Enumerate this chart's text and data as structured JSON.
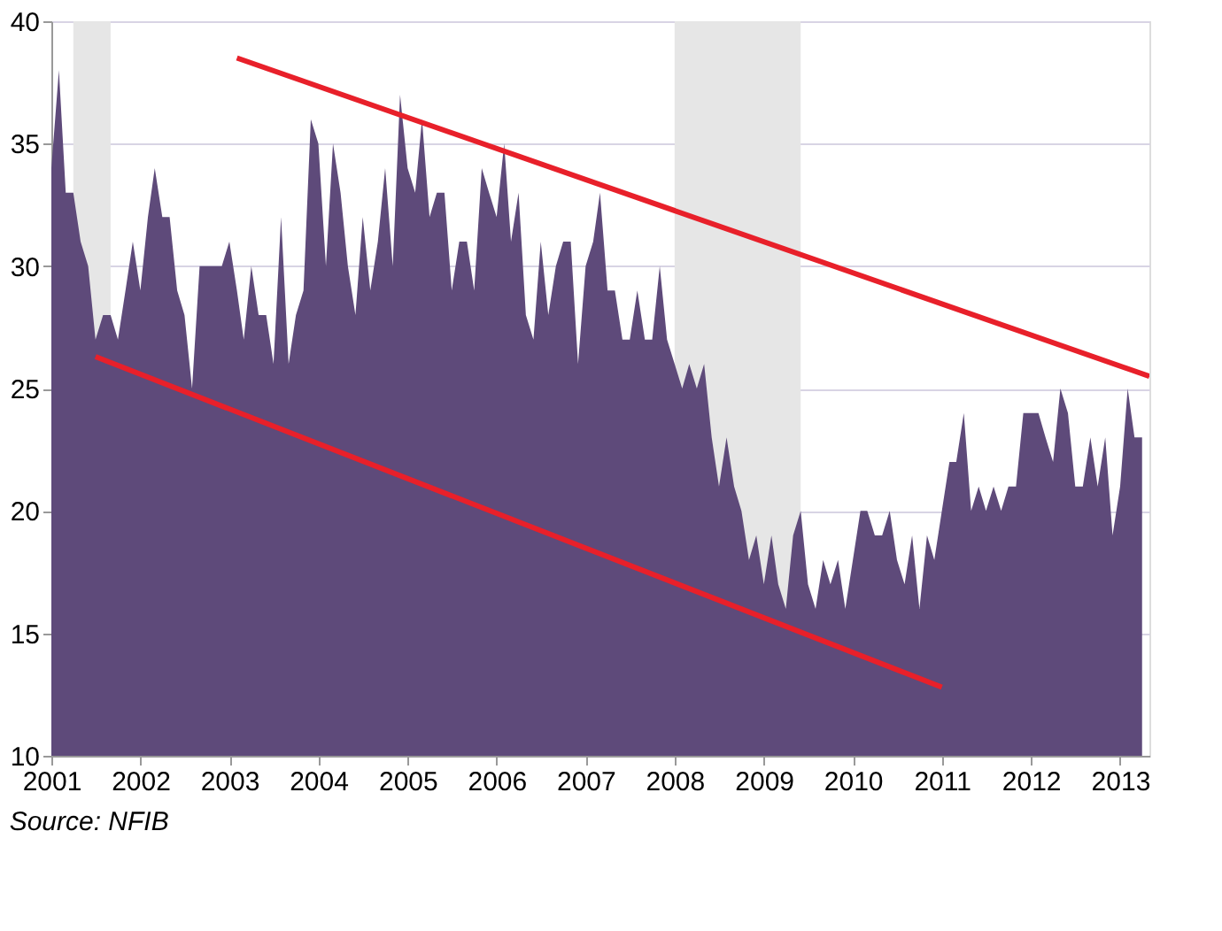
{
  "chart_data": {
    "type": "area",
    "annotations": [
      "Source: NFIB"
    ],
    "xlim": [
      "2001-01",
      "2013-05"
    ],
    "xticks": [
      "2001",
      "2002",
      "2003",
      "2004",
      "2005",
      "2006",
      "2007",
      "2008",
      "2009",
      "2010",
      "2011",
      "2012",
      "2013"
    ],
    "ylim": [
      10,
      40
    ],
    "yticks": [
      10,
      15,
      20,
      25,
      30,
      35,
      40
    ],
    "grid": "y",
    "x": [
      "2001-01",
      "2001-02",
      "2001-03",
      "2001-04",
      "2001-05",
      "2001-06",
      "2001-07",
      "2001-08",
      "2001-09",
      "2001-10",
      "2001-11",
      "2001-12",
      "2002-01",
      "2002-02",
      "2002-03",
      "2002-04",
      "2002-05",
      "2002-06",
      "2002-07",
      "2002-08",
      "2002-09",
      "2002-10",
      "2002-11",
      "2002-12",
      "2003-01",
      "2003-02",
      "2003-03",
      "2003-04",
      "2003-05",
      "2003-06",
      "2003-07",
      "2003-08",
      "2003-09",
      "2003-10",
      "2003-11",
      "2003-12",
      "2004-01",
      "2004-02",
      "2004-03",
      "2004-04",
      "2004-05",
      "2004-06",
      "2004-07",
      "2004-08",
      "2004-09",
      "2004-10",
      "2004-11",
      "2004-12",
      "2005-01",
      "2005-02",
      "2005-03",
      "2005-04",
      "2005-05",
      "2005-06",
      "2005-07",
      "2005-08",
      "2005-09",
      "2005-10",
      "2005-11",
      "2005-12",
      "2006-01",
      "2006-02",
      "2006-03",
      "2006-04",
      "2006-05",
      "2006-06",
      "2006-07",
      "2006-08",
      "2006-09",
      "2006-10",
      "2006-11",
      "2006-12",
      "2007-01",
      "2007-02",
      "2007-03",
      "2007-04",
      "2007-05",
      "2007-06",
      "2007-07",
      "2007-08",
      "2007-09",
      "2007-10",
      "2007-11",
      "2007-12",
      "2008-01",
      "2008-02",
      "2008-03",
      "2008-04",
      "2008-05",
      "2008-06",
      "2008-07",
      "2008-08",
      "2008-09",
      "2008-10",
      "2008-11",
      "2008-12",
      "2009-01",
      "2009-02",
      "2009-03",
      "2009-04",
      "2009-05",
      "2009-06",
      "2009-07",
      "2009-08",
      "2009-09",
      "2009-10",
      "2009-11",
      "2009-12",
      "2010-01",
      "2010-02",
      "2010-03",
      "2010-04",
      "2010-05",
      "2010-06",
      "2010-07",
      "2010-08",
      "2010-09",
      "2010-10",
      "2010-11",
      "2010-12",
      "2011-01",
      "2011-02",
      "2011-03",
      "2011-04",
      "2011-05",
      "2011-06",
      "2011-07",
      "2011-08",
      "2011-09",
      "2011-10",
      "2011-11",
      "2011-12",
      "2012-01",
      "2012-02",
      "2012-03",
      "2012-04",
      "2012-05",
      "2012-06",
      "2012-07",
      "2012-08",
      "2012-09",
      "2012-10",
      "2012-11",
      "2012-12",
      "2013-01",
      "2013-02",
      "2013-03",
      "2013-04"
    ],
    "series": [
      {
        "color": "#5e4a7a",
        "values": [
          34,
          38,
          33,
          33,
          31,
          30,
          27,
          28,
          28,
          27,
          29,
          31,
          29,
          32,
          34,
          32,
          32,
          29,
          28,
          25,
          30,
          30,
          30,
          30,
          31,
          29,
          27,
          30,
          28,
          28,
          26,
          32,
          26,
          28,
          29,
          36,
          35,
          30,
          35,
          33,
          30,
          28,
          32,
          29,
          31,
          34,
          30,
          37,
          34,
          33,
          36,
          32,
          33,
          33,
          29,
          31,
          31,
          29,
          34,
          33,
          32,
          35,
          31,
          33,
          28,
          27,
          31,
          28,
          30,
          31,
          31,
          26,
          30,
          31,
          33,
          29,
          29,
          27,
          27,
          29,
          27,
          27,
          30,
          27,
          26,
          25,
          26,
          25,
          26,
          23,
          21,
          23,
          21,
          20,
          18,
          19,
          17,
          19,
          17,
          16,
          19,
          20,
          17,
          16,
          18,
          17,
          18,
          16,
          18,
          20,
          20,
          19,
          19,
          20,
          18,
          17,
          19,
          16,
          19,
          18,
          20,
          22,
          22,
          24,
          20,
          21,
          20,
          21,
          20,
          21,
          21,
          24,
          24,
          24,
          23,
          22,
          25,
          24,
          21,
          21,
          23,
          21,
          23,
          19,
          21,
          25,
          23,
          23
        ]
      },
      {
        "type": "line",
        "color": "#e8202a",
        "x": [
          "2003-02",
          "2013-05"
        ],
        "values": [
          38.5,
          25.5
        ]
      },
      {
        "type": "line",
        "color": "#e8202a",
        "x": [
          "2001-07",
          "2011-01"
        ],
        "values": [
          26.3,
          12.8
        ]
      }
    ],
    "bands": [
      {
        "axis": "x",
        "from": "2001-04",
        "to": "2001-09",
        "color": "#e6e6e6"
      },
      {
        "axis": "x",
        "from": "2008-01",
        "to": "2009-06",
        "color": "#e6e6e6"
      }
    ]
  }
}
